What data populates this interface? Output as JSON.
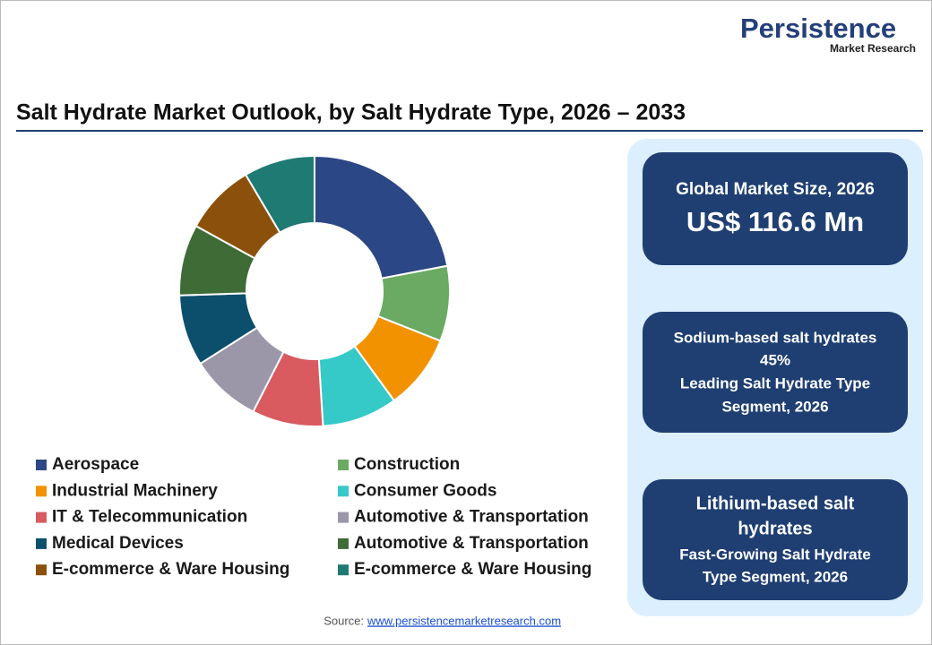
{
  "chart_data": {
    "type": "donut",
    "title": "Salt Hydrate Market Outlook, by Salt Hydrate Type, 2026 – 2033",
    "categories": [
      "Aerospace",
      "Construction",
      "Industrial Machinery",
      "Consumer Goods",
      "IT & Telecommunication",
      "Automotive  & Transportation",
      "Medical Devices",
      "Automotive  & Transportation",
      "E-commerce & Ware Housing",
      "E-commerce & Ware Housing"
    ],
    "values": [
      22,
      9,
      9,
      9,
      8.5,
      8.5,
      8.5,
      8.5,
      8.5,
      8.5
    ],
    "colors": [
      "#2c4785",
      "#6aaa63",
      "#f39200",
      "#35c9c8",
      "#d95a5f",
      "#9b96a8",
      "#0c4f6d",
      "#3f6c36",
      "#8b500b",
      "#1e7a73"
    ]
  },
  "logo": {
    "name": "Persistence",
    "sub": "Market Research"
  },
  "panels": [
    {
      "title": "Global Market Size, 2026",
      "value": "US$ 116.6 Mn"
    },
    {
      "lines": [
        "Sodium-based salt hydrates",
        "45%",
        "Leading Salt Hydrate Type",
        "Segment, 2026"
      ]
    },
    {
      "lines": [
        "Lithium-based salt",
        "hydrates",
        "Fast-Growing Salt Hydrate",
        "Type Segment, 2026"
      ]
    }
  ],
  "source": {
    "label": "Source:",
    "link": "www.persistencemarketresearch.com"
  }
}
